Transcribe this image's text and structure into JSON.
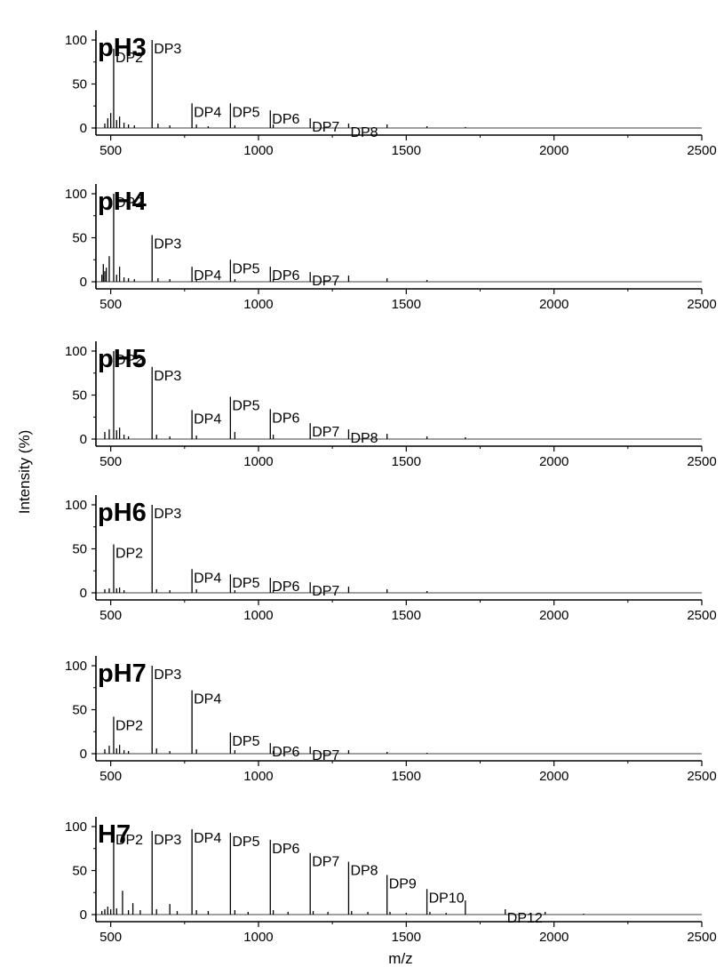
{
  "figure": {
    "ylabel": "Intensity (%)",
    "xlabel": "m/z"
  },
  "chart_data": [
    {
      "type": "line",
      "title": "pH3",
      "xlim": [
        450,
        2500
      ],
      "ylim": [
        0,
        100
      ],
      "xticks": [
        500,
        1000,
        1500,
        2000,
        2500
      ],
      "yticks": [
        0,
        50,
        100
      ],
      "peaks": [
        {
          "x": 480,
          "y": 5
        },
        {
          "x": 490,
          "y": 11
        },
        {
          "x": 500,
          "y": 17
        },
        {
          "x": 510,
          "y": 90
        },
        {
          "x": 520,
          "y": 9
        },
        {
          "x": 530,
          "y": 13
        },
        {
          "x": 545,
          "y": 6
        },
        {
          "x": 560,
          "y": 4
        },
        {
          "x": 580,
          "y": 3
        },
        {
          "x": 640,
          "y": 100
        },
        {
          "x": 660,
          "y": 5
        },
        {
          "x": 700,
          "y": 3
        },
        {
          "x": 775,
          "y": 28
        },
        {
          "x": 790,
          "y": 4
        },
        {
          "x": 830,
          "y": 2
        },
        {
          "x": 905,
          "y": 28
        },
        {
          "x": 920,
          "y": 3
        },
        {
          "x": 1040,
          "y": 20
        },
        {
          "x": 1050,
          "y": 4
        },
        {
          "x": 1175,
          "y": 11
        },
        {
          "x": 1305,
          "y": 5
        },
        {
          "x": 1435,
          "y": 4
        },
        {
          "x": 1570,
          "y": 2
        },
        {
          "x": 1700,
          "y": 1
        }
      ],
      "labels": [
        {
          "text": "DP2",
          "x": 510,
          "y": 90
        },
        {
          "text": "DP3",
          "x": 640,
          "y": 100
        },
        {
          "text": "DP4",
          "x": 775,
          "y": 28
        },
        {
          "text": "DP5",
          "x": 905,
          "y": 28
        },
        {
          "text": "DP6",
          "x": 1040,
          "y": 20
        },
        {
          "text": "DP7",
          "x": 1175,
          "y": 11
        },
        {
          "text": "DP8",
          "x": 1305,
          "y": 5
        }
      ]
    },
    {
      "type": "line",
      "title": "pH4",
      "xlim": [
        450,
        2500
      ],
      "ylim": [
        0,
        100
      ],
      "xticks": [
        500,
        1000,
        1500,
        2000,
        2500
      ],
      "yticks": [
        0,
        50,
        100
      ],
      "peaks": [
        {
          "x": 470,
          "y": 8
        },
        {
          "x": 475,
          "y": 20
        },
        {
          "x": 480,
          "y": 12
        },
        {
          "x": 485,
          "y": 16
        },
        {
          "x": 495,
          "y": 29
        },
        {
          "x": 510,
          "y": 100
        },
        {
          "x": 520,
          "y": 8
        },
        {
          "x": 530,
          "y": 17
        },
        {
          "x": 545,
          "y": 5
        },
        {
          "x": 560,
          "y": 4
        },
        {
          "x": 580,
          "y": 3
        },
        {
          "x": 640,
          "y": 53
        },
        {
          "x": 660,
          "y": 4
        },
        {
          "x": 700,
          "y": 3
        },
        {
          "x": 775,
          "y": 17
        },
        {
          "x": 790,
          "y": 3
        },
        {
          "x": 905,
          "y": 25
        },
        {
          "x": 920,
          "y": 3
        },
        {
          "x": 1040,
          "y": 17
        },
        {
          "x": 1050,
          "y": 3
        },
        {
          "x": 1175,
          "y": 11
        },
        {
          "x": 1305,
          "y": 7
        },
        {
          "x": 1435,
          "y": 4
        },
        {
          "x": 1570,
          "y": 2
        }
      ],
      "labels": [
        {
          "text": "DP2",
          "x": 510,
          "y": 100
        },
        {
          "text": "DP3",
          "x": 640,
          "y": 53
        },
        {
          "text": "DP4",
          "x": 775,
          "y": 17
        },
        {
          "text": "DP5",
          "x": 905,
          "y": 25
        },
        {
          "text": "DP6",
          "x": 1040,
          "y": 17
        },
        {
          "text": "DP7",
          "x": 1175,
          "y": 11
        }
      ]
    },
    {
      "type": "line",
      "title": "pH5",
      "xlim": [
        450,
        2500
      ],
      "ylim": [
        0,
        100
      ],
      "xticks": [
        500,
        1000,
        1500,
        2000,
        2500
      ],
      "yticks": [
        0,
        50,
        100
      ],
      "peaks": [
        {
          "x": 480,
          "y": 8
        },
        {
          "x": 495,
          "y": 11
        },
        {
          "x": 510,
          "y": 100
        },
        {
          "x": 520,
          "y": 10
        },
        {
          "x": 530,
          "y": 13
        },
        {
          "x": 545,
          "y": 5
        },
        {
          "x": 560,
          "y": 3
        },
        {
          "x": 640,
          "y": 82
        },
        {
          "x": 655,
          "y": 5
        },
        {
          "x": 700,
          "y": 3
        },
        {
          "x": 775,
          "y": 33
        },
        {
          "x": 790,
          "y": 4
        },
        {
          "x": 905,
          "y": 48
        },
        {
          "x": 920,
          "y": 8
        },
        {
          "x": 1040,
          "y": 34
        },
        {
          "x": 1050,
          "y": 5
        },
        {
          "x": 1175,
          "y": 18
        },
        {
          "x": 1305,
          "y": 11
        },
        {
          "x": 1435,
          "y": 6
        },
        {
          "x": 1570,
          "y": 3
        },
        {
          "x": 1700,
          "y": 2
        }
      ],
      "labels": [
        {
          "text": "DP2",
          "x": 510,
          "y": 100
        },
        {
          "text": "DP3",
          "x": 640,
          "y": 82
        },
        {
          "text": "DP4",
          "x": 775,
          "y": 33
        },
        {
          "text": "DP5",
          "x": 905,
          "y": 48
        },
        {
          "text": "DP6",
          "x": 1040,
          "y": 34
        },
        {
          "text": "DP7",
          "x": 1175,
          "y": 18
        },
        {
          "text": "DP8",
          "x": 1305,
          "y": 11
        }
      ]
    },
    {
      "type": "line",
      "title": "pH6",
      "xlim": [
        450,
        2500
      ],
      "ylim": [
        0,
        100
      ],
      "xticks": [
        500,
        1000,
        1500,
        2000,
        2500
      ],
      "yticks": [
        0,
        50,
        100
      ],
      "peaks": [
        {
          "x": 480,
          "y": 4
        },
        {
          "x": 495,
          "y": 5
        },
        {
          "x": 510,
          "y": 55
        },
        {
          "x": 520,
          "y": 5
        },
        {
          "x": 530,
          "y": 6
        },
        {
          "x": 545,
          "y": 3
        },
        {
          "x": 640,
          "y": 100
        },
        {
          "x": 655,
          "y": 4
        },
        {
          "x": 700,
          "y": 3
        },
        {
          "x": 775,
          "y": 27
        },
        {
          "x": 790,
          "y": 4
        },
        {
          "x": 905,
          "y": 21
        },
        {
          "x": 920,
          "y": 3
        },
        {
          "x": 1040,
          "y": 17
        },
        {
          "x": 1050,
          "y": 3
        },
        {
          "x": 1175,
          "y": 12
        },
        {
          "x": 1305,
          "y": 7
        },
        {
          "x": 1435,
          "y": 4
        },
        {
          "x": 1570,
          "y": 2
        }
      ],
      "labels": [
        {
          "text": "DP2",
          "x": 510,
          "y": 55
        },
        {
          "text": "DP3",
          "x": 640,
          "y": 100
        },
        {
          "text": "DP4",
          "x": 775,
          "y": 27
        },
        {
          "text": "DP5",
          "x": 905,
          "y": 21
        },
        {
          "text": "DP6",
          "x": 1040,
          "y": 17
        },
        {
          "text": "DP7",
          "x": 1175,
          "y": 12
        }
      ]
    },
    {
      "type": "line",
      "title": "pH7",
      "xlim": [
        450,
        2500
      ],
      "ylim": [
        0,
        100
      ],
      "xticks": [
        500,
        1000,
        1500,
        2000,
        2500
      ],
      "yticks": [
        0,
        50,
        100
      ],
      "peaks": [
        {
          "x": 480,
          "y": 5
        },
        {
          "x": 495,
          "y": 9
        },
        {
          "x": 510,
          "y": 42
        },
        {
          "x": 520,
          "y": 6
        },
        {
          "x": 530,
          "y": 10
        },
        {
          "x": 545,
          "y": 4
        },
        {
          "x": 560,
          "y": 3
        },
        {
          "x": 640,
          "y": 100
        },
        {
          "x": 655,
          "y": 6
        },
        {
          "x": 700,
          "y": 3
        },
        {
          "x": 775,
          "y": 72
        },
        {
          "x": 790,
          "y": 5
        },
        {
          "x": 905,
          "y": 24
        },
        {
          "x": 920,
          "y": 4
        },
        {
          "x": 1040,
          "y": 12
        },
        {
          "x": 1050,
          "y": 3
        },
        {
          "x": 1175,
          "y": 8
        },
        {
          "x": 1305,
          "y": 4
        },
        {
          "x": 1435,
          "y": 2
        },
        {
          "x": 1570,
          "y": 1
        }
      ],
      "labels": [
        {
          "text": "DP2",
          "x": 510,
          "y": 42
        },
        {
          "text": "DP3",
          "x": 640,
          "y": 100
        },
        {
          "text": "DP4",
          "x": 775,
          "y": 72
        },
        {
          "text": "DP5",
          "x": 905,
          "y": 24
        },
        {
          "text": "DP6",
          "x": 1040,
          "y": 12
        },
        {
          "text": "DP7",
          "x": 1175,
          "y": 8
        }
      ]
    },
    {
      "type": "line",
      "title": "H7",
      "xlim": [
        450,
        2500
      ],
      "ylim": [
        0,
        100
      ],
      "xticks": [
        500,
        1000,
        1500,
        2000,
        2500
      ],
      "yticks": [
        0,
        50,
        100
      ],
      "peaks": [
        {
          "x": 470,
          "y": 4
        },
        {
          "x": 480,
          "y": 6
        },
        {
          "x": 490,
          "y": 9
        },
        {
          "x": 500,
          "y": 6
        },
        {
          "x": 510,
          "y": 95
        },
        {
          "x": 520,
          "y": 7
        },
        {
          "x": 540,
          "y": 27
        },
        {
          "x": 560,
          "y": 5
        },
        {
          "x": 575,
          "y": 13
        },
        {
          "x": 600,
          "y": 5
        },
        {
          "x": 640,
          "y": 95
        },
        {
          "x": 655,
          "y": 6
        },
        {
          "x": 700,
          "y": 12
        },
        {
          "x": 725,
          "y": 4
        },
        {
          "x": 775,
          "y": 97
        },
        {
          "x": 790,
          "y": 5
        },
        {
          "x": 830,
          "y": 4
        },
        {
          "x": 905,
          "y": 93
        },
        {
          "x": 920,
          "y": 5
        },
        {
          "x": 965,
          "y": 3
        },
        {
          "x": 1040,
          "y": 85
        },
        {
          "x": 1050,
          "y": 5
        },
        {
          "x": 1100,
          "y": 3
        },
        {
          "x": 1175,
          "y": 70
        },
        {
          "x": 1185,
          "y": 4
        },
        {
          "x": 1235,
          "y": 3
        },
        {
          "x": 1305,
          "y": 60
        },
        {
          "x": 1315,
          "y": 4
        },
        {
          "x": 1370,
          "y": 3
        },
        {
          "x": 1435,
          "y": 45
        },
        {
          "x": 1445,
          "y": 3
        },
        {
          "x": 1500,
          "y": 2
        },
        {
          "x": 1570,
          "y": 29
        },
        {
          "x": 1580,
          "y": 3
        },
        {
          "x": 1635,
          "y": 2
        },
        {
          "x": 1700,
          "y": 16
        },
        {
          "x": 1835,
          "y": 6
        },
        {
          "x": 1970,
          "y": 3
        },
        {
          "x": 2100,
          "y": 1
        }
      ],
      "labels": [
        {
          "text": "DP2",
          "x": 510,
          "y": 95
        },
        {
          "text": "DP3",
          "x": 640,
          "y": 95
        },
        {
          "text": "DP4",
          "x": 775,
          "y": 97
        },
        {
          "text": "DP5",
          "x": 905,
          "y": 93
        },
        {
          "text": "DP6",
          "x": 1040,
          "y": 85
        },
        {
          "text": "DP7",
          "x": 1175,
          "y": 70
        },
        {
          "text": "DP8",
          "x": 1305,
          "y": 60
        },
        {
          "text": "DP9",
          "x": 1435,
          "y": 45
        },
        {
          "text": "DP10",
          "x": 1570,
          "y": 29
        },
        {
          "text": "DP12",
          "x": 1835,
          "y": 6
        }
      ]
    }
  ]
}
